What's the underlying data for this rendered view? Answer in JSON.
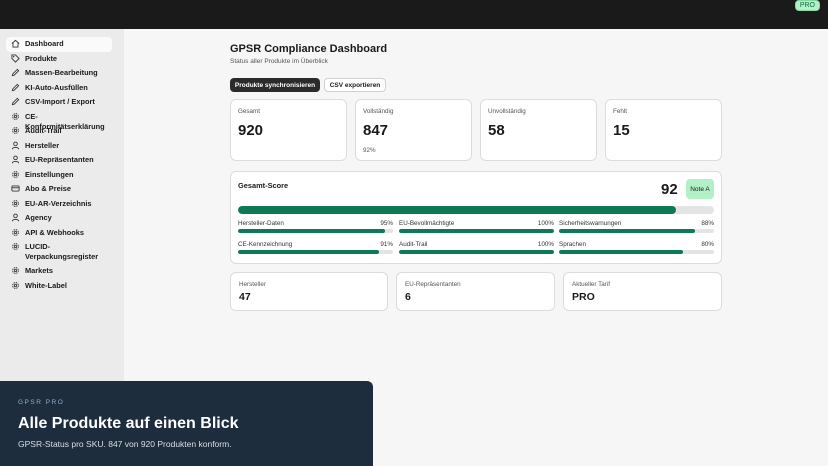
{
  "topbar": {
    "badge": "PRO"
  },
  "sidebar": {
    "items": [
      {
        "label": "Dashboard",
        "icon": "home-icon",
        "active": true
      },
      {
        "label": "Produkte",
        "icon": "tag-icon"
      },
      {
        "label": "Massen-Bearbeitung",
        "icon": "pencil-icon"
      },
      {
        "label": "KI-Auto-Ausfüllen",
        "icon": "pencil-icon"
      },
      {
        "label": "CSV-Import / Export",
        "icon": "pencil-icon"
      },
      {
        "label": "CE-Konformitätserklärung",
        "icon": "gear-icon"
      },
      {
        "label": "Audit-Trail",
        "icon": "gear-icon"
      },
      {
        "label": "Hersteller",
        "icon": "person-icon"
      },
      {
        "label": "EU-Repräsentanten",
        "icon": "person-icon"
      },
      {
        "label": "Einstellungen",
        "icon": "gear-icon"
      },
      {
        "label": "Abo & Preise",
        "icon": "card-icon"
      },
      {
        "label": "EU-AR-Verzeichnis",
        "icon": "gear-icon"
      },
      {
        "label": "Agency",
        "icon": "person-icon"
      },
      {
        "label": "API & Webhooks",
        "icon": "gear-icon"
      },
      {
        "label": "LUCID-Verpackungsregister",
        "icon": "gear-icon",
        "tall": true
      },
      {
        "label": "Markets",
        "icon": "gear-icon"
      },
      {
        "label": "White-Label",
        "icon": "gear-icon"
      }
    ]
  },
  "header": {
    "title": "GPSR Compliance Dashboard",
    "subtitle": "Status aller Produkte im Überblick"
  },
  "actions": {
    "sync_label": "Produkte synchronisieren",
    "export_label": "CSV exportieren"
  },
  "stats": [
    {
      "label": "Gesamt",
      "value": "920"
    },
    {
      "label": "Vollständig",
      "value": "847",
      "sub": "92%"
    },
    {
      "label": "Unvollständig",
      "value": "58"
    },
    {
      "label": "Fehlt",
      "value": "15"
    }
  ],
  "score": {
    "title": "Gesamt-Score",
    "value": "92",
    "value_fraction": 0.92,
    "grade": "Note A",
    "metrics": [
      {
        "label": "Hersteller-Daten",
        "value": "95%",
        "fraction": 0.95
      },
      {
        "label": "EU-Bevollmächtigte",
        "value": "100%",
        "fraction": 1.0
      },
      {
        "label": "Sicherheitswarnungen",
        "value": "88%",
        "fraction": 0.88
      },
      {
        "label": "CE-Kennzeichnung",
        "value": "91%",
        "fraction": 0.91
      },
      {
        "label": "Audit-Trail",
        "value": "100%",
        "fraction": 1.0
      },
      {
        "label": "Sprachen",
        "value": "80%",
        "fraction": 0.8
      }
    ]
  },
  "info": [
    {
      "label": "Hersteller",
      "value": "47"
    },
    {
      "label": "EU-Repräsentanten",
      "value": "6"
    },
    {
      "label": "Aktueller Tarif",
      "value": "PRO"
    }
  ],
  "promo": {
    "kicker": "GPSR PRO",
    "title": "Alle Produkte auf einen Blick",
    "text": "GPSR-Status pro SKU. 847 von 920 Produkten konform."
  },
  "colors": {
    "accent": "#0e7a55",
    "grade_bg": "#b3f0c8",
    "promo_bg": "#1e2d3d"
  }
}
